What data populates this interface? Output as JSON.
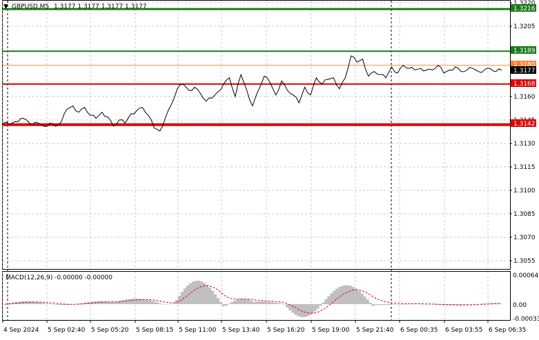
{
  "header": {
    "title": "GBPUSD,M5",
    "ohlc": "1.3177 1.3177 1.3177 1.3177"
  },
  "price_axis": {
    "ticks": [
      "1.3220",
      "1.3205",
      "1.3160",
      "1.3145",
      "1.3130",
      "1.3115",
      "1.3100",
      "1.3085",
      "1.3070",
      "1.3055"
    ],
    "labels": {
      "top_green": "1.3216",
      "mid_green": "1.3189",
      "orange": "1.3180",
      "current": "1.3177",
      "red_upper": "1.3168",
      "red_lower": "1.3142"
    }
  },
  "time_axis": {
    "ticks": [
      "4 Sep 2024",
      "5 Sep 02:40",
      "5 Sep 05:20",
      "5 Sep 08:15",
      "5 Sep 11:00",
      "5 Sep 13:40",
      "5 Sep 16:20",
      "5 Sep 19:00",
      "5 Sep 21:40",
      "6 Sep 00:35",
      "6 Sep 03:55",
      "6 Sep 06:35"
    ]
  },
  "macd": {
    "title": "MACD(12,26,9) -0.00000 -0.00000",
    "ticks": [
      "0.00064",
      "0.00",
      "-0.00033"
    ]
  },
  "colors": {
    "green_line": "#1a7a1a",
    "green_tag": "#1a7a1a",
    "red_line": "#e00000",
    "red_tag": "#e00000",
    "orange_line": "#ff8c40",
    "orange_tag": "#ff7f27",
    "price_line": "#000000",
    "current_tag": "#000000",
    "histogram": "#c0c0c0",
    "signal": "#e00000",
    "grid": "#c8c8c8"
  },
  "chart_data": {
    "type": "line",
    "title": "GBPUSD,M5",
    "ylim": [
      1.305,
      1.3222
    ],
    "levels": [
      {
        "label": "1.3216",
        "y": 1.3216,
        "color": "green"
      },
      {
        "label": "1.3189",
        "y": 1.3189,
        "color": "green"
      },
      {
        "label": "1.3180",
        "y": 1.318,
        "color": "orange"
      },
      {
        "label": "1.3168",
        "y": 1.3168,
        "color": "red"
      },
      {
        "label": "1.3142",
        "y": 1.3142,
        "color": "red"
      }
    ],
    "series": [
      {
        "values": [
          1.3143,
          1.3142,
          1.3144,
          1.3146,
          1.3145,
          1.3142,
          1.3143,
          1.3141,
          1.3143,
          1.3141,
          1.3144,
          1.3152,
          1.3154,
          1.315,
          1.3153,
          1.3148,
          1.3146,
          1.315,
          1.3147,
          1.3141,
          1.3145,
          1.3143,
          1.3149,
          1.3151,
          1.3153,
          1.3148,
          1.314,
          1.3138,
          1.3147,
          1.3155,
          1.3165,
          1.3168,
          1.3164,
          1.3166,
          1.3162,
          1.3157,
          1.3159,
          1.3163,
          1.3168,
          1.3172,
          1.316,
          1.3174,
          1.3164,
          1.3154,
          1.3164,
          1.3173,
          1.3169,
          1.3161,
          1.317,
          1.3164,
          1.3161,
          1.3156,
          1.3166,
          1.3161,
          1.3172,
          1.3168,
          1.3171,
          1.3172,
          1.3165,
          1.3172,
          1.3186,
          1.3182,
          1.3184,
          1.3173,
          1.3176,
          1.3174,
          1.3172,
          1.3179,
          1.3175,
          1.318,
          1.3178,
          1.3177,
          1.3178,
          1.3177,
          1.3177,
          1.318,
          1.3175,
          1.3177,
          1.3179,
          1.3176,
          1.3177,
          1.3178,
          1.3176,
          1.3177,
          1.3178,
          1.3176,
          1.3177
        ]
      }
    ],
    "macd": {
      "ylim": [
        -0.0004,
        0.0007
      ],
      "ticks": [
        0.00064,
        0.0,
        -0.00033
      ]
    }
  }
}
